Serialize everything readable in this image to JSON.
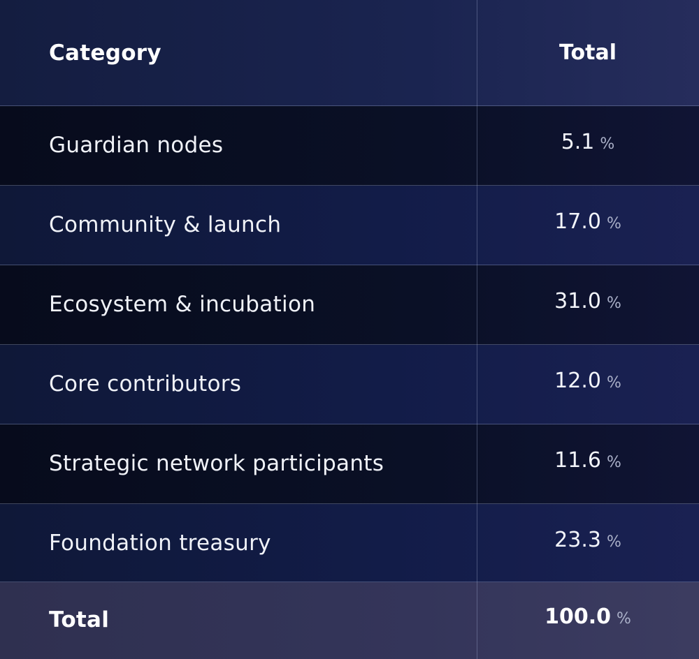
{
  "table": {
    "header": {
      "category": "Category",
      "total": "Total"
    },
    "rows": [
      {
        "category": "Guardian nodes",
        "value": "5.1",
        "unit": "%"
      },
      {
        "category": "Community & launch",
        "value": "17.0",
        "unit": "%"
      },
      {
        "category": "Ecosystem & incubation",
        "value": "31.0",
        "unit": "%"
      },
      {
        "category": "Core contributors",
        "value": "12.0",
        "unit": "%"
      },
      {
        "category": "Strategic network participants",
        "value": "11.6",
        "unit": "%"
      },
      {
        "category": "Foundation treasury",
        "value": "23.3",
        "unit": "%"
      }
    ],
    "footer": {
      "category": "Total",
      "value": "100.0",
      "unit": "%"
    }
  }
}
